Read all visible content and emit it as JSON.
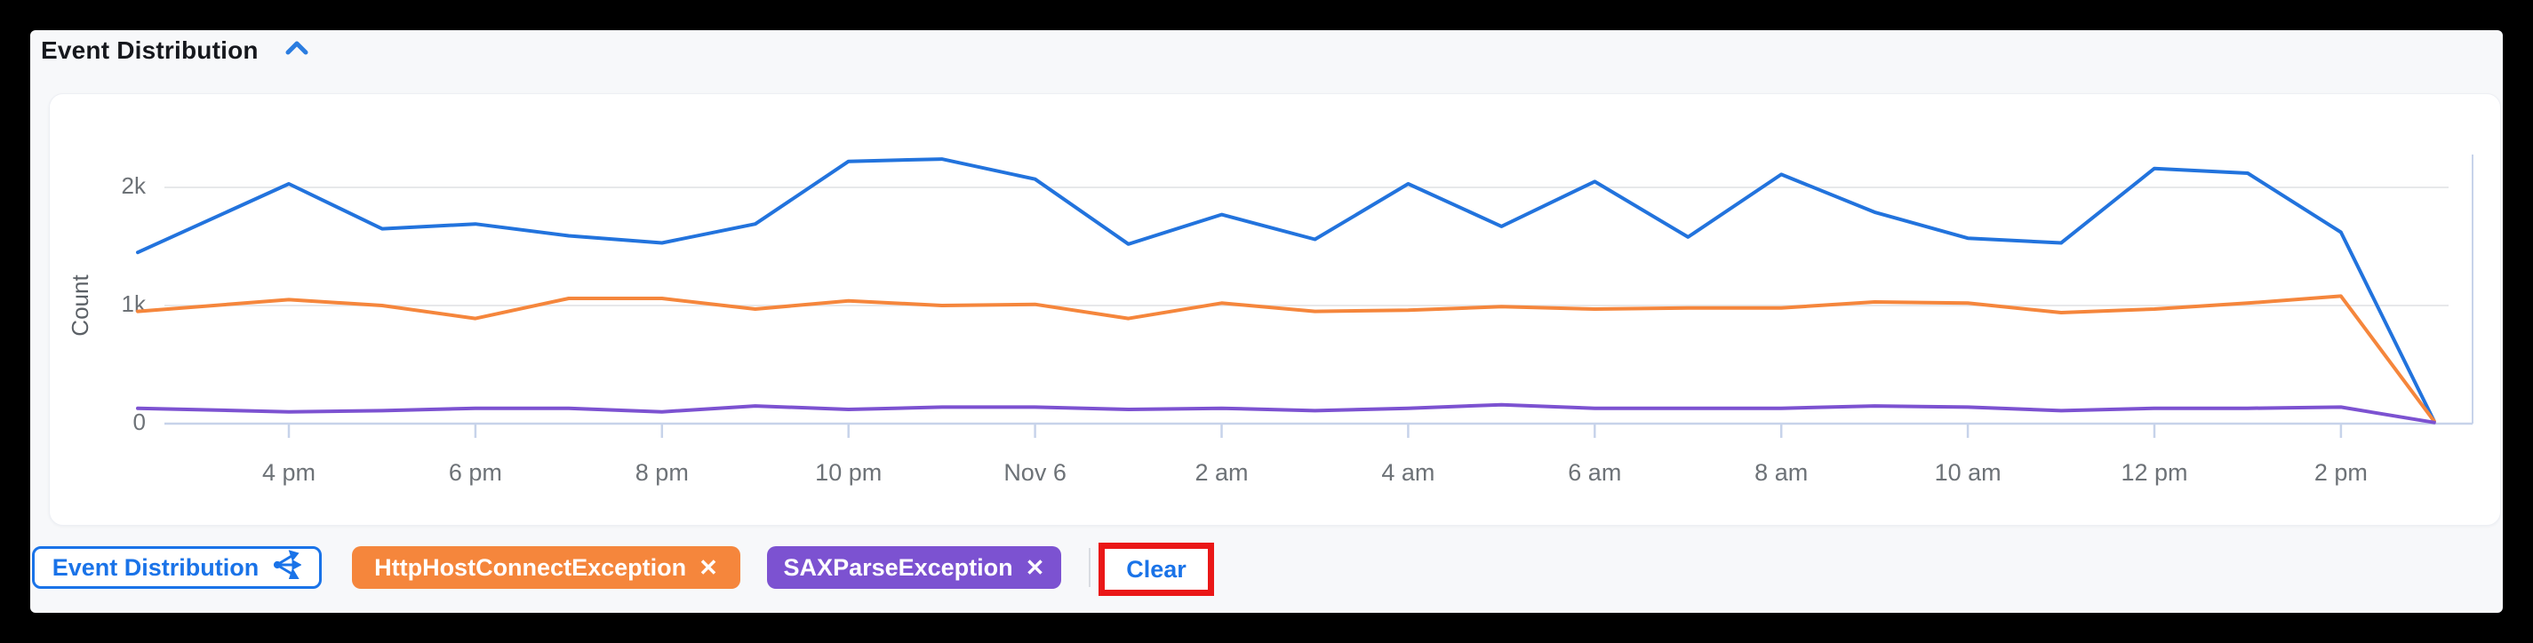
{
  "header": {
    "title": "Event Distribution",
    "collapse_icon": "chevron-up",
    "accent_color": "#1a73e8"
  },
  "chart_data": {
    "type": "line",
    "title": "Event Distribution",
    "xlabel": "",
    "ylabel": "Count",
    "ylim": [
      0,
      2400
    ],
    "grid": "horizontal",
    "legend_position": "none",
    "y_ticks": [
      {
        "label": "0",
        "value": 0
      },
      {
        "label": "1k",
        "value": 1000
      },
      {
        "label": "2k",
        "value": 2000
      }
    ],
    "x_tick_labels": [
      "4 pm",
      "6 pm",
      "8 pm",
      "10 pm",
      "Nov 6",
      "2 am",
      "4 am",
      "6 am",
      "8 am",
      "10 am",
      "12 pm",
      "2 pm"
    ],
    "x": [
      "3 pm",
      "4 pm",
      "5 pm",
      "6 pm",
      "7 pm",
      "8 pm",
      "9 pm",
      "10 pm",
      "11 pm",
      "Nov 6",
      "1 am",
      "2 am",
      "3 am",
      "4 am",
      "5 am",
      "6 am",
      "7 am",
      "8 am",
      "9 am",
      "10 am",
      "11 am",
      "12 pm",
      "1 pm",
      "2 pm",
      "3 pm"
    ],
    "series": [
      {
        "name": "Event Distribution",
        "color": "#2273dd",
        "values": [
          1450,
          2030,
          1650,
          1690,
          1590,
          1530,
          1690,
          2220,
          2240,
          2070,
          1520,
          1770,
          1560,
          2030,
          1670,
          2050,
          1580,
          2110,
          1790,
          1570,
          1530,
          2160,
          2120,
          1620,
          20
        ]
      },
      {
        "name": "HttpHostConnectException",
        "color": "#f5863c",
        "values": [
          950,
          1050,
          1000,
          890,
          1060,
          1060,
          970,
          1040,
          1000,
          1010,
          890,
          1020,
          950,
          960,
          990,
          970,
          980,
          980,
          1030,
          1020,
          940,
          970,
          1020,
          1080,
          20
        ]
      },
      {
        "name": "SAXParseException",
        "color": "#7c52d1",
        "values": [
          130,
          100,
          110,
          130,
          130,
          100,
          150,
          120,
          140,
          140,
          120,
          130,
          110,
          130,
          160,
          130,
          130,
          130,
          150,
          140,
          110,
          130,
          130,
          140,
          10
        ]
      }
    ]
  },
  "filters": {
    "series_chip": {
      "label": "Event Distribution",
      "icon": "share-icon"
    },
    "chips": [
      {
        "label": "HttpHostConnectException",
        "close": "✕",
        "color": "#f5863c"
      },
      {
        "label": "SAXParseException",
        "close": "✕",
        "color": "#7c52d1"
      }
    ],
    "clear_label": "Clear"
  },
  "annotation": {
    "type": "highlight-box",
    "target": "clear-button",
    "color": "#ea1717"
  },
  "colors": {
    "page_background": "#f7f8fa",
    "card_background": "#ffffff",
    "axis_line": "#c7d3ea",
    "gridline": "#e7e8ea",
    "tick_label": "#6d7277",
    "title_text": "#16181d"
  }
}
